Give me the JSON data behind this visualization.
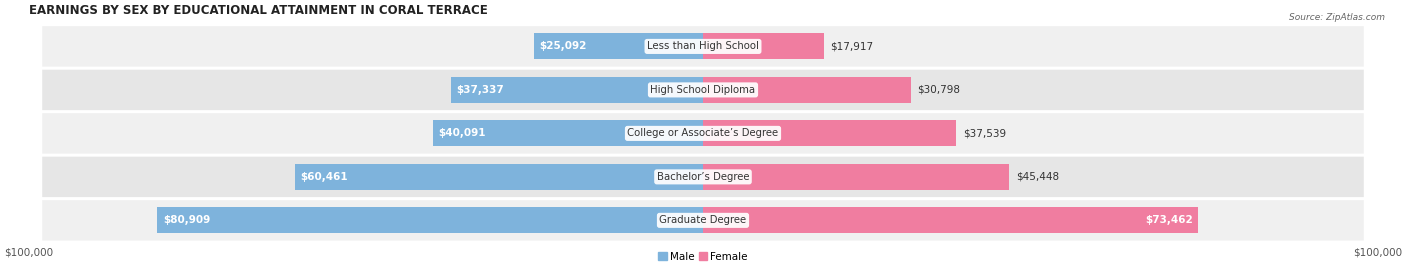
{
  "title": "EARNINGS BY SEX BY EDUCATIONAL ATTAINMENT IN CORAL TERRACE",
  "source": "Source: ZipAtlas.com",
  "categories": [
    "Less than High School",
    "High School Diploma",
    "College or Associate’s Degree",
    "Bachelor’s Degree",
    "Graduate Degree"
  ],
  "male_values": [
    25092,
    37337,
    40091,
    60461,
    80909
  ],
  "female_values": [
    17917,
    30798,
    37539,
    45448,
    73462
  ],
  "male_labels": [
    "$25,092",
    "$37,337",
    "$40,091",
    "$60,461",
    "$80,909"
  ],
  "female_labels": [
    "$17,917",
    "$30,798",
    "$37,539",
    "$45,448",
    "$73,462"
  ],
  "male_color": "#7EB3DC",
  "female_color": "#F07DA0",
  "row_bg_color_odd": "#F0F0F0",
  "row_bg_color_even": "#E6E6E6",
  "fig_bg_color": "#FFFFFF",
  "max_value": 100000,
  "figsize": [
    14.06,
    2.68
  ],
  "dpi": 100,
  "title_fontsize": 8.5,
  "label_fontsize": 7.5,
  "bar_height": 0.6,
  "legend_male": "Male",
  "legend_female": "Female"
}
